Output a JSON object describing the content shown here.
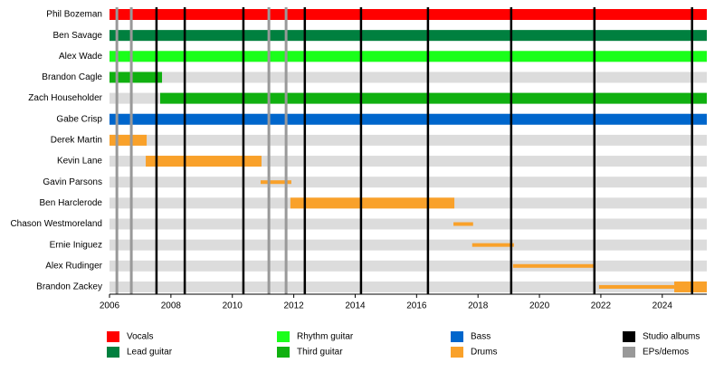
{
  "chart_data": {
    "type": "timeline",
    "xlim": [
      2006,
      2025.45
    ],
    "xticks": [
      2006,
      2008,
      2010,
      2012,
      2014,
      2016,
      2018,
      2020,
      2022,
      2024
    ],
    "roles": [
      {
        "name": "Vocals",
        "color": "#ff0000"
      },
      {
        "name": "Lead guitar",
        "color": "#00803f"
      },
      {
        "name": "Rhythm guitar",
        "color": "#1aff1a"
      },
      {
        "name": "Third guitar",
        "color": "#10b010"
      },
      {
        "name": "Bass",
        "color": "#0066cc"
      },
      {
        "name": "Drums",
        "color": "#f9a12a"
      }
    ],
    "events": [
      {
        "name": "Studio albums",
        "color": "#000000",
        "values": [
          2007.53,
          2008.45,
          2010.36,
          2012.36,
          2014.19,
          2016.37,
          2019.08,
          2021.79,
          2024.97
        ]
      },
      {
        "name": "EPs/demos",
        "color": "#999999",
        "values": [
          2006.24,
          2006.71,
          2011.19,
          2011.75
        ]
      }
    ],
    "members": [
      {
        "name": "Phil Bozeman",
        "periods": [
          {
            "role": 0,
            "start": 2006,
            "end": 2025.45
          }
        ]
      },
      {
        "name": "Ben Savage",
        "periods": [
          {
            "role": 1,
            "start": 2006,
            "end": 2025.45
          }
        ]
      },
      {
        "name": "Alex Wade",
        "periods": [
          {
            "role": 2,
            "start": 2006,
            "end": 2025.45
          }
        ]
      },
      {
        "name": "Brandon Cagle",
        "periods": [
          {
            "role": 3,
            "start": 2006,
            "end": 2007.71
          }
        ]
      },
      {
        "name": "Zach Householder",
        "periods": [
          {
            "role": 3,
            "start": 2007.65,
            "end": 2025.45
          }
        ]
      },
      {
        "name": "Gabe Crisp",
        "periods": [
          {
            "role": 4,
            "start": 2006,
            "end": 2025.45
          }
        ]
      },
      {
        "name": "Derek Martin",
        "periods": [
          {
            "role": 5,
            "start": 2006,
            "end": 2007.21
          }
        ]
      },
      {
        "name": "Kevin Lane",
        "periods": [
          {
            "role": 5,
            "start": 2007.18,
            "end": 2010.95
          }
        ]
      },
      {
        "name": "Gavin Parsons",
        "periods": [
          {
            "role": 5,
            "start": 2010.92,
            "end": 2011.92,
            "thin": true
          }
        ]
      },
      {
        "name": "Ben Harclerode",
        "periods": [
          {
            "role": 5,
            "start": 2011.89,
            "end": 2017.23
          }
        ]
      },
      {
        "name": "Chason Westmoreland",
        "periods": [
          {
            "role": 5,
            "start": 2017.2,
            "end": 2017.84,
            "thin": true
          }
        ]
      },
      {
        "name": "Ernie Iniguez",
        "periods": [
          {
            "role": 5,
            "start": 2017.81,
            "end": 2019.17,
            "thin": true
          }
        ]
      },
      {
        "name": "Alex Rudinger",
        "periods": [
          {
            "role": 5,
            "start": 2019.14,
            "end": 2021.76,
            "thin": true
          }
        ]
      },
      {
        "name": "Brandon Zackey",
        "periods": [
          {
            "role": 5,
            "start": 2021.94,
            "end": 2024.39,
            "thin": true
          },
          {
            "role": 5,
            "start": 2024.39,
            "end": 2025.45
          }
        ]
      }
    ]
  }
}
